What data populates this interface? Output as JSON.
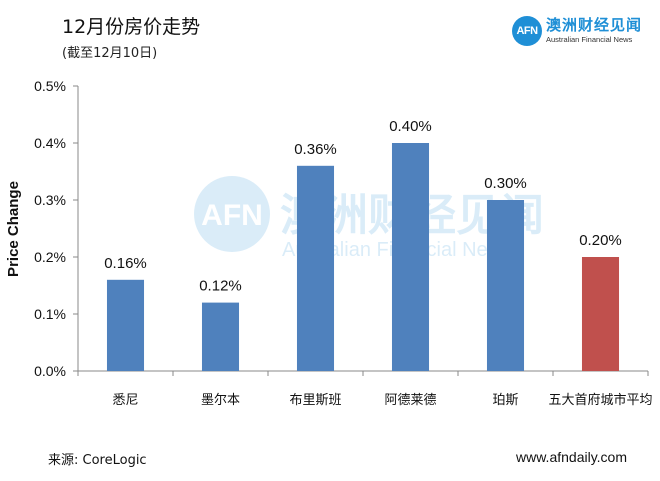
{
  "title": "12月份房价走势",
  "subtitle": "(截至12月10日)",
  "logo": {
    "badge": "AFN",
    "name_cn": "澳洲财经见闻",
    "name_en": "Australian Financial News"
  },
  "watermark": {
    "badge": "AFN",
    "name_cn": "澳洲财经见闻",
    "name_en": "Australian Financial News"
  },
  "footer": {
    "source": "来源:  CoreLogic",
    "site": "www.afndaily.com"
  },
  "colors": {
    "bar": "#4f81bd",
    "highlight_bar": "#c0504d",
    "logo": "#1f8fd6"
  },
  "chart_data": {
    "type": "bar",
    "title": "12月份房价走势",
    "subtitle": "(截至12月10日)",
    "xlabel": "",
    "ylabel": "Price Change",
    "categories": [
      "悉尼",
      "墨尔本",
      "布里斯班",
      "阿德莱德",
      "珀斯",
      "五大首府城市平均"
    ],
    "values": [
      0.16,
      0.12,
      0.36,
      0.4,
      0.3,
      0.2
    ],
    "data_labels": [
      "0.16%",
      "0.12%",
      "0.36%",
      "0.40%",
      "0.30%",
      "0.20%"
    ],
    "highlight_index": 5,
    "ylim": [
      0,
      0.5
    ],
    "yticks": [
      0.0,
      0.1,
      0.2,
      0.3,
      0.4,
      0.5
    ],
    "ytick_labels": [
      "0.0%",
      "0.1%",
      "0.2%",
      "0.3%",
      "0.4%",
      "0.5%"
    ],
    "grid": false,
    "legend": "none"
  }
}
